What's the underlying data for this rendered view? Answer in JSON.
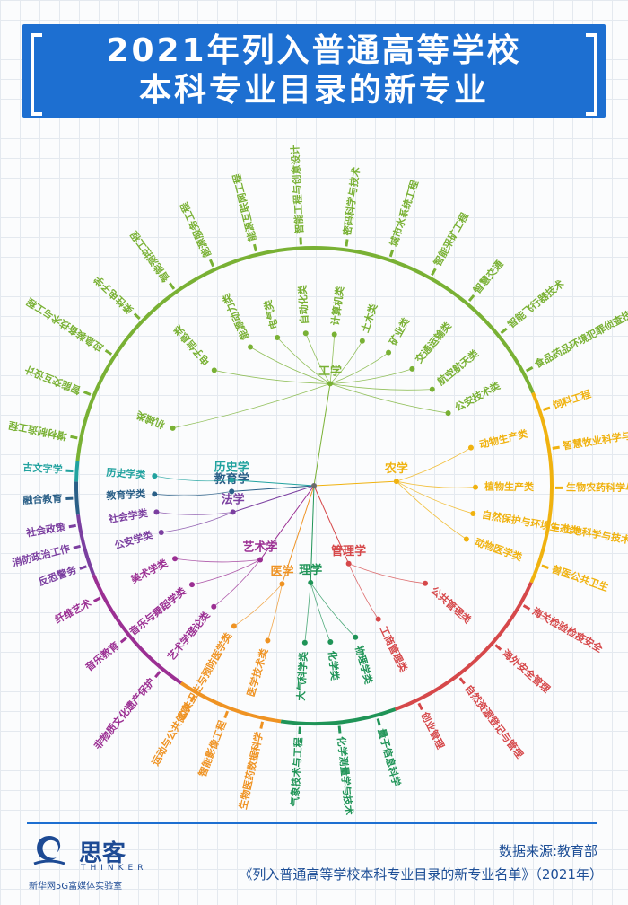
{
  "title": {
    "line1": "2021年列入普通高等学校",
    "line2": "本科专业目录的新专业"
  },
  "diagram": {
    "groups": [
      {
        "category": "工学",
        "color": "#79b134",
        "branches": [
          {
            "name": "机械类",
            "leaves": [
              "增材制造工程",
              "智能交互设计",
              "应急装备技术与工程"
            ]
          },
          {
            "name": "电子信息类",
            "leaves": [
              "柔性电子学",
              "智能测控工程"
            ]
          },
          {
            "name": "能源动力类",
            "leaves": [
              "能源服务工程"
            ]
          },
          {
            "name": "电气类",
            "leaves": [
              "能源互联网工程"
            ]
          },
          {
            "name": "自动化类",
            "leaves": [
              "智能工程与创意设计"
            ]
          },
          {
            "name": "计算机类",
            "leaves": [
              "密码科学与技术"
            ]
          },
          {
            "name": "土木类",
            "leaves": [
              "城市水系统工程"
            ]
          },
          {
            "name": "矿业类",
            "leaves": [
              "智能采矿工程"
            ]
          },
          {
            "name": "交通运输类",
            "leaves": [
              "智慧交通"
            ]
          },
          {
            "name": "航空航天类",
            "leaves": [
              "智能飞行器技术"
            ]
          },
          {
            "name": "公安技术类",
            "leaves": [
              "食品药品环境犯罪侦查技术"
            ]
          }
        ]
      },
      {
        "category": "农学",
        "color": "#f0b20f",
        "branches": [
          {
            "name": "动物生产类",
            "leaves": [
              "饲料工程",
              "智慧牧业科学与工程"
            ]
          },
          {
            "name": "植物生产类",
            "leaves": [
              "生物农药科学与工程"
            ]
          },
          {
            "name": "自然保护与环境生态类",
            "leaves": [
              "土地科学与技术"
            ]
          },
          {
            "name": "动物医学类",
            "leaves": [
              "兽医公共卫生"
            ]
          }
        ]
      },
      {
        "category": "管理学",
        "color": "#d6484a",
        "branches": [
          {
            "name": "公共管理类",
            "leaves": [
              "海关检验检疫安全",
              "海外安全管理",
              "自然资源登记与管理"
            ]
          },
          {
            "name": "工商管理类",
            "leaves": [
              "创业管理"
            ]
          }
        ]
      },
      {
        "category": "理学",
        "color": "#1f9457",
        "branches": [
          {
            "name": "物理学类",
            "leaves": [
              "量子信息科学"
            ]
          },
          {
            "name": "化学类",
            "leaves": [
              "化学测量学与技术"
            ]
          },
          {
            "name": "大气科学类",
            "leaves": [
              "气象技术与工程"
            ]
          }
        ]
      },
      {
        "category": "医学",
        "color": "#ef9323",
        "branches": [
          {
            "name": "医学技术类",
            "leaves": [
              "生物医药数据科学",
              "智能影像工程"
            ]
          },
          {
            "name": "公共卫生与预防医学类",
            "leaves": [
              "运动与公共健康"
            ]
          }
        ]
      },
      {
        "category": "艺术学",
        "color": "#9b2f93",
        "branches": [
          {
            "name": "艺术学理论类",
            "leaves": [
              "非物质文化遗产保护"
            ]
          },
          {
            "name": "音乐与舞蹈学类",
            "leaves": [
              "音乐教育"
            ]
          },
          {
            "name": "美术学类",
            "leaves": [
              "纤维艺术"
            ]
          }
        ]
      },
      {
        "category": "法学",
        "color": "#7b3fa0",
        "branches": [
          {
            "name": "公安学类",
            "leaves": [
              "反恐警务",
              "消防政治工作"
            ]
          },
          {
            "name": "社会学类",
            "leaves": [
              "社会政策"
            ]
          }
        ]
      },
      {
        "category": "教育学",
        "color": "#2a5f87",
        "branches": [
          {
            "name": "教育学类",
            "leaves": [
              "融合教育"
            ]
          }
        ]
      },
      {
        "category": "历史学",
        "color": "#21a29f",
        "branches": [
          {
            "name": "历史学类",
            "leaves": [
              "古文字学"
            ]
          }
        ]
      }
    ]
  },
  "footer": {
    "logo_cn": "思客",
    "logo_en": "THINKER",
    "logo_org": "新华网5G富媒体实验室",
    "source_line1": "数据来源:教育部",
    "source_line2": "《列入普通高等学校本科专业目录的新专业名单》（2021年）"
  }
}
